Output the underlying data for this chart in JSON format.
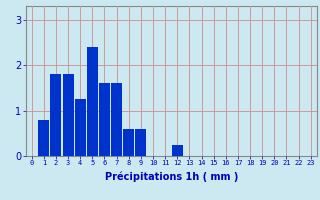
{
  "values": [
    0,
    0.8,
    1.8,
    1.8,
    1.25,
    2.4,
    1.6,
    1.6,
    0.6,
    0.6,
    0,
    0,
    0.25,
    0,
    0,
    0,
    0,
    0,
    0,
    0,
    0,
    0,
    0,
    0
  ],
  "bar_color": "#0033cc",
  "background_color": "#cce8f0",
  "grid_color": "#cc9999",
  "text_color": "#0000bb",
  "xlabel": "Précipitations 1h ( mm )",
  "ylim": [
    0,
    3.3
  ],
  "yticks": [
    0,
    1,
    2,
    3
  ],
  "n_bars": 24,
  "xtick_labels": [
    "0",
    "1",
    "2",
    "3",
    "4",
    "5",
    "6",
    "7",
    "8",
    "9",
    "10",
    "11",
    "12",
    "13",
    "14",
    "15",
    "16",
    "17",
    "18",
    "19",
    "20",
    "21",
    "22",
    "23"
  ],
  "figsize": [
    3.2,
    2.0
  ],
  "dpi": 100
}
